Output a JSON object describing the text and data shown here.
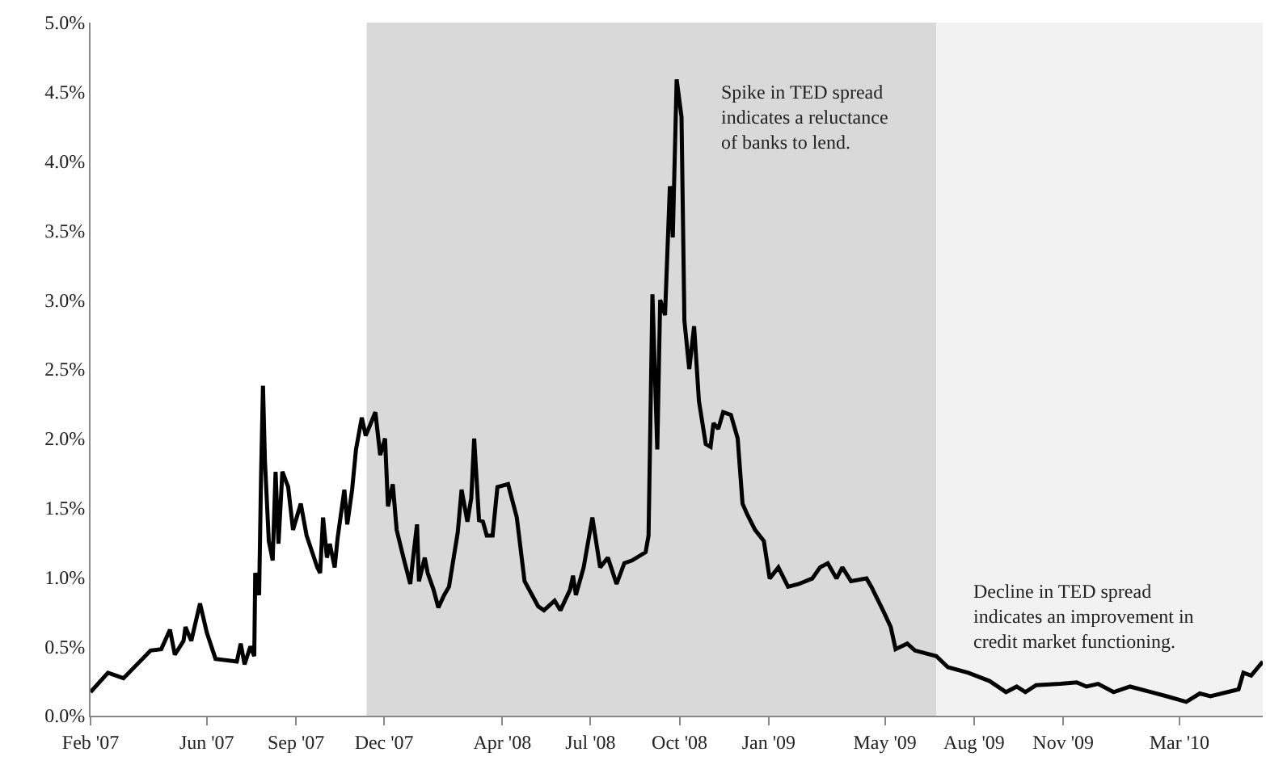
{
  "chart_data": {
    "type": "line",
    "x": [
      "2007-02-01",
      "2007-02-19",
      "2007-03-07",
      "2007-04-04",
      "2007-04-15",
      "2007-04-24",
      "2007-04-29",
      "2007-05-08",
      "2007-05-10",
      "2007-05-16",
      "2007-05-25",
      "2007-06-01",
      "2007-06-10",
      "2007-07-02",
      "2007-07-06",
      "2007-07-10",
      "2007-07-16",
      "2007-07-20",
      "2007-07-21",
      "2007-07-25",
      "2007-07-27",
      "2007-07-29",
      "2007-07-31",
      "2007-08-04",
      "2007-08-08",
      "2007-08-11",
      "2007-08-14",
      "2007-08-18",
      "2007-08-24",
      "2007-08-29",
      "2007-09-06",
      "2007-09-12",
      "2007-09-23",
      "2007-09-26",
      "2007-09-29",
      "2007-10-03",
      "2007-10-06",
      "2007-10-11",
      "2007-10-14",
      "2007-10-21",
      "2007-10-24",
      "2007-10-29",
      "2007-11-02",
      "2007-11-08",
      "2007-11-12",
      "2007-11-22",
      "2007-11-27",
      "2007-12-02",
      "2007-12-05",
      "2007-12-10",
      "2007-12-14",
      "2007-12-21",
      "2007-12-28",
      "2007-12-31",
      "2008-01-04",
      "2008-01-06",
      "2008-01-12",
      "2008-01-15",
      "2008-01-21",
      "2008-01-26",
      "2008-02-01",
      "2008-02-06",
      "2008-02-15",
      "2008-02-19",
      "2008-02-25",
      "2008-02-29",
      "2008-03-03",
      "2008-03-08",
      "2008-03-12",
      "2008-03-16",
      "2008-03-22",
      "2008-03-27",
      "2008-04-07",
      "2008-04-16",
      "2008-04-24",
      "2008-05-08",
      "2008-05-14",
      "2008-05-25",
      "2008-05-31",
      "2008-06-10",
      "2008-06-13",
      "2008-06-16",
      "2008-06-24",
      "2008-07-03",
      "2008-07-11",
      "2008-07-19",
      "2008-07-28",
      "2008-08-05",
      "2008-08-13",
      "2008-08-27",
      "2008-08-30",
      "2008-09-03",
      "2008-09-08",
      "2008-09-11",
      "2008-09-16",
      "2008-09-21",
      "2008-09-24",
      "2008-09-28",
      "2008-10-03",
      "2008-10-06",
      "2008-10-11",
      "2008-10-16",
      "2008-10-21",
      "2008-10-28",
      "2008-11-02",
      "2008-11-05",
      "2008-11-10",
      "2008-11-15",
      "2008-11-23",
      "2008-11-30",
      "2008-12-05",
      "2008-12-10",
      "2008-12-18",
      "2008-12-27",
      "2009-01-02",
      "2009-01-11",
      "2009-01-21",
      "2009-02-01",
      "2009-02-15",
      "2009-02-23",
      "2009-03-03",
      "2009-03-12",
      "2009-03-18",
      "2009-03-27",
      "2009-04-12",
      "2009-04-17",
      "2009-04-29",
      "2009-05-07",
      "2009-05-12",
      "2009-05-24",
      "2009-06-01",
      "2009-06-23",
      "2009-07-05",
      "2009-07-26",
      "2009-08-17",
      "2009-09-03",
      "2009-09-14",
      "2009-09-23",
      "2009-10-04",
      "2009-10-29",
      "2009-11-15",
      "2009-11-25",
      "2009-12-07",
      "2009-12-23",
      "2010-01-09",
      "2010-01-31",
      "2010-02-16",
      "2010-03-08",
      "2010-03-22",
      "2010-04-02",
      "2010-05-01",
      "2010-05-06",
      "2010-05-14",
      "2010-05-26"
    ],
    "series": [
      {
        "color": "#000000",
        "values": [
          0.17,
          0.31,
          0.27,
          0.47,
          0.48,
          0.62,
          0.44,
          0.54,
          0.64,
          0.54,
          0.81,
          0.6,
          0.41,
          0.39,
          0.52,
          0.37,
          0.5,
          0.43,
          1.03,
          0.87,
          1.72,
          2.38,
          1.84,
          1.26,
          1.12,
          1.76,
          1.24,
          1.76,
          1.65,
          1.34,
          1.53,
          1.3,
          1.07,
          1.03,
          1.43,
          1.14,
          1.24,
          1.07,
          1.28,
          1.63,
          1.38,
          1.63,
          1.92,
          2.15,
          2.02,
          2.19,
          1.88,
          2.0,
          1.51,
          1.67,
          1.34,
          1.14,
          0.95,
          1.14,
          1.38,
          0.97,
          1.14,
          1.03,
          0.91,
          0.78,
          0.87,
          0.93,
          1.32,
          1.63,
          1.4,
          1.57,
          2.0,
          1.41,
          1.4,
          1.3,
          1.3,
          1.65,
          1.67,
          1.43,
          0.97,
          0.79,
          0.76,
          0.83,
          0.76,
          0.91,
          1.01,
          0.87,
          1.07,
          1.43,
          1.07,
          1.14,
          0.95,
          1.1,
          1.12,
          1.18,
          1.3,
          3.04,
          1.92,
          3.0,
          2.89,
          3.82,
          3.45,
          4.59,
          4.32,
          2.85,
          2.5,
          2.81,
          2.27,
          1.96,
          1.94,
          2.11,
          2.07,
          2.19,
          2.17,
          2.0,
          1.53,
          1.45,
          1.34,
          1.26,
          0.99,
          1.07,
          0.93,
          0.95,
          0.99,
          1.07,
          1.1,
          0.99,
          1.07,
          0.97,
          0.99,
          0.93,
          0.76,
          0.64,
          0.48,
          0.52,
          0.47,
          0.43,
          0.35,
          0.31,
          0.25,
          0.17,
          0.21,
          0.17,
          0.22,
          0.23,
          0.24,
          0.21,
          0.23,
          0.17,
          0.21,
          0.17,
          0.14,
          0.1,
          0.16,
          0.14,
          0.19,
          0.31,
          0.29,
          0.39
        ]
      }
    ],
    "xlim": [
      "2007-02-01",
      "2010-05-26"
    ],
    "xticks": [
      {
        "value": "2007-02-01",
        "label": "Feb '07"
      },
      {
        "value": "2007-06-01",
        "label": "Jun '07"
      },
      {
        "value": "2007-09-01",
        "label": "Sep '07"
      },
      {
        "value": "2007-12-01",
        "label": "Dec '07"
      },
      {
        "value": "2008-04-01",
        "label": "Apr '08"
      },
      {
        "value": "2008-07-01",
        "label": "Jul '08"
      },
      {
        "value": "2008-10-01",
        "label": "Oct '08"
      },
      {
        "value": "2009-01-01",
        "label": "Jan '09"
      },
      {
        "value": "2009-05-01",
        "label": "May '09"
      },
      {
        "value": "2009-08-01",
        "label": "Aug '09"
      },
      {
        "value": "2009-11-01",
        "label": "Nov '09"
      },
      {
        "value": "2010-03-01",
        "label": "Mar '10"
      }
    ],
    "ylim": [
      0,
      5
    ],
    "yticks": [
      {
        "value": 0,
        "label": "0.0%"
      },
      {
        "value": 0.5,
        "label": "0.5%"
      },
      {
        "value": 1,
        "label": "1.0%"
      },
      {
        "value": 1.5,
        "label": "1.5%"
      },
      {
        "value": 2,
        "label": "2.0%"
      },
      {
        "value": 2.5,
        "label": "2.5%"
      },
      {
        "value": 3,
        "label": "3.0%"
      },
      {
        "value": 3.5,
        "label": "3.5%"
      },
      {
        "value": 4,
        "label": "4.0%"
      },
      {
        "value": 4.5,
        "label": "4.5%"
      },
      {
        "value": 5,
        "label": "5.0%"
      }
    ],
    "bands": [
      {
        "axis": "x",
        "from": "2007-11-13",
        "to": "2009-06-23",
        "color": "#d9d9d9"
      },
      {
        "axis": "x",
        "from": "2009-06-23",
        "to": "2010-05-26",
        "color": "#f2f2f2"
      }
    ],
    "annotations": [
      "Spike in TED spread\nindicates a reluctance\nof banks to lend.",
      "Decline in TED spread\nindicates an improvement in\ncredit market functioning."
    ],
    "line_style": "solid",
    "marker": "none"
  }
}
